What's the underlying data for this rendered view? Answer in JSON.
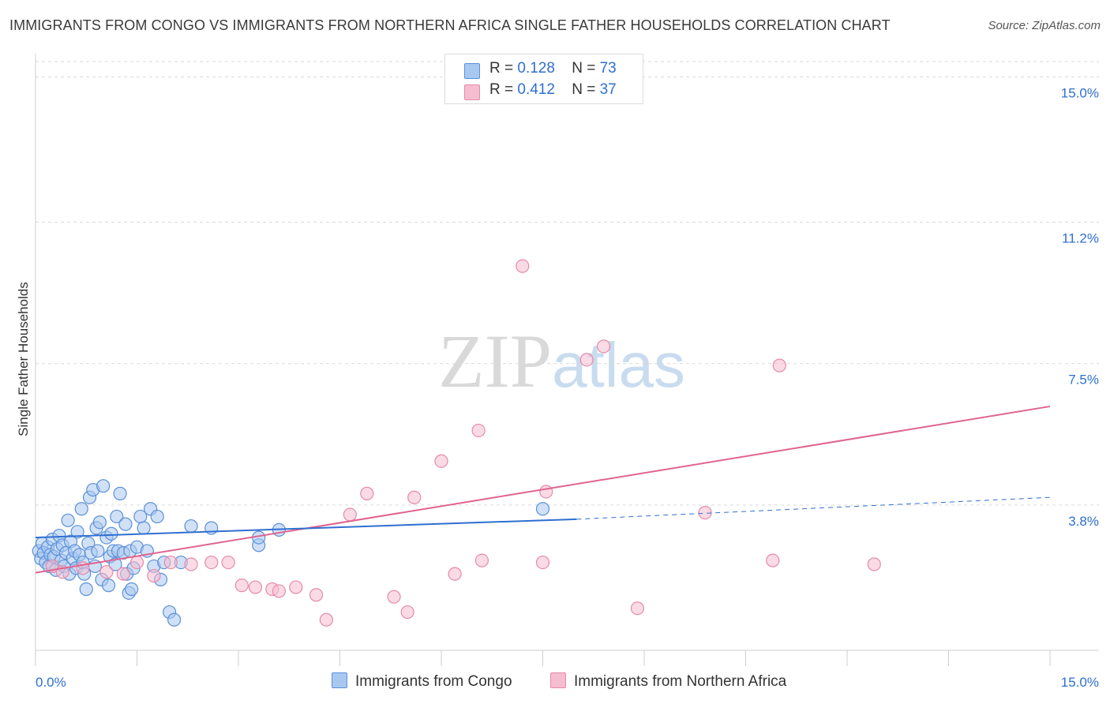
{
  "title": "IMMIGRANTS FROM CONGO VS IMMIGRANTS FROM NORTHERN AFRICA SINGLE FATHER HOUSEHOLDS CORRELATION CHART",
  "source": "Source: ZipAtlas.com",
  "watermark": {
    "zip": "ZIP",
    "atlas": "atlas"
  },
  "legend": {
    "rows": [
      {
        "r_label": "R =",
        "r_value": "0.128",
        "n_label": "N =",
        "n_value": "73"
      },
      {
        "r_label": "R =",
        "r_value": "0.412",
        "n_label": "N =",
        "n_value": "37"
      }
    ]
  },
  "colors": {
    "congo_fill": "#a9c8f0",
    "congo_stroke": "#5b90d8",
    "congo_line": "#2f6fd0",
    "nafrica_fill": "#f6bdd0",
    "nafrica_stroke": "#e58aaa",
    "nafrica_line": "#e0648f",
    "grid": "#d9d9d9",
    "axis_text": "#2f6fd0"
  },
  "chart_data": {
    "type": "scatter",
    "title": "IMMIGRANTS FROM CONGO VS IMMIGRANTS FROM NORTHERN AFRICA SINGLE FATHER HOUSEHOLDS CORRELATION CHART",
    "xlabel": "",
    "ylabel": "Single Father Households",
    "xlim": [
      0,
      15
    ],
    "ylim": [
      0,
      15.4
    ],
    "x_tick_labels": [
      "0.0%",
      "15.0%"
    ],
    "y_ticks": [
      3.8,
      7.5,
      11.2,
      15.0
    ],
    "y_tick_labels": [
      "3.8%",
      "7.5%",
      "11.2%",
      "15.0%"
    ],
    "series": [
      {
        "name": "Immigrants from Congo",
        "r": 0.128,
        "n": 73,
        "trend": {
          "x": [
            0,
            8.0
          ],
          "y": [
            2.95,
            3.43
          ]
        },
        "trend_dashed": {
          "x": [
            8.0,
            15.0
          ],
          "y": [
            3.43,
            4.0
          ]
        },
        "points": [
          [
            0.05,
            2.6
          ],
          [
            0.08,
            2.4
          ],
          [
            0.1,
            2.8
          ],
          [
            0.12,
            2.55
          ],
          [
            0.15,
            2.3
          ],
          [
            0.18,
            2.7
          ],
          [
            0.2,
            2.2
          ],
          [
            0.22,
            2.5
          ],
          [
            0.25,
            2.9
          ],
          [
            0.27,
            2.45
          ],
          [
            0.3,
            2.1
          ],
          [
            0.32,
            2.65
          ],
          [
            0.35,
            3.0
          ],
          [
            0.38,
            2.35
          ],
          [
            0.4,
            2.75
          ],
          [
            0.42,
            2.2
          ],
          [
            0.45,
            2.55
          ],
          [
            0.48,
            3.4
          ],
          [
            0.5,
            2.0
          ],
          [
            0.52,
            2.85
          ],
          [
            0.55,
            2.4
          ],
          [
            0.58,
            2.6
          ],
          [
            0.6,
            2.15
          ],
          [
            0.62,
            3.1
          ],
          [
            0.65,
            2.5
          ],
          [
            0.68,
            3.7
          ],
          [
            0.7,
            2.3
          ],
          [
            0.72,
            2.0
          ],
          [
            0.75,
            1.6
          ],
          [
            0.78,
            2.8
          ],
          [
            0.8,
            4.0
          ],
          [
            0.82,
            2.55
          ],
          [
            0.85,
            4.2
          ],
          [
            0.88,
            2.2
          ],
          [
            0.9,
            3.2
          ],
          [
            0.92,
            2.6
          ],
          [
            0.95,
            3.35
          ],
          [
            0.98,
            1.85
          ],
          [
            1.0,
            4.3
          ],
          [
            1.05,
            2.95
          ],
          [
            1.08,
            1.7
          ],
          [
            1.1,
            2.45
          ],
          [
            1.12,
            3.05
          ],
          [
            1.15,
            2.6
          ],
          [
            1.18,
            2.25
          ],
          [
            1.2,
            3.5
          ],
          [
            1.22,
            2.6
          ],
          [
            1.25,
            4.1
          ],
          [
            1.3,
            2.55
          ],
          [
            1.33,
            3.3
          ],
          [
            1.35,
            2.0
          ],
          [
            1.38,
            1.5
          ],
          [
            1.4,
            2.6
          ],
          [
            1.42,
            1.6
          ],
          [
            1.45,
            2.15
          ],
          [
            1.5,
            2.7
          ],
          [
            1.55,
            3.5
          ],
          [
            1.6,
            3.2
          ],
          [
            1.65,
            2.6
          ],
          [
            1.7,
            3.7
          ],
          [
            1.75,
            2.2
          ],
          [
            1.8,
            3.5
          ],
          [
            1.85,
            1.85
          ],
          [
            1.9,
            2.3
          ],
          [
            1.98,
            1.0
          ],
          [
            2.05,
            0.8
          ],
          [
            2.15,
            2.3
          ],
          [
            2.3,
            3.25
          ],
          [
            2.6,
            3.2
          ],
          [
            3.3,
            2.75
          ],
          [
            3.3,
            2.95
          ],
          [
            3.6,
            3.15
          ],
          [
            7.5,
            3.7
          ]
        ]
      },
      {
        "name": "Immigrants from Northern Africa",
        "r": 0.412,
        "n": 37,
        "trend": {
          "x": [
            0,
            15.0
          ],
          "y": [
            2.03,
            6.38
          ]
        },
        "points": [
          [
            0.25,
            2.2
          ],
          [
            0.4,
            2.05
          ],
          [
            0.7,
            2.15
          ],
          [
            1.05,
            2.05
          ],
          [
            1.3,
            2.0
          ],
          [
            1.5,
            2.3
          ],
          [
            1.75,
            1.95
          ],
          [
            2.0,
            2.3
          ],
          [
            2.3,
            2.25
          ],
          [
            2.6,
            2.3
          ],
          [
            2.85,
            2.3
          ],
          [
            3.05,
            1.7
          ],
          [
            3.25,
            1.65
          ],
          [
            3.5,
            1.6
          ],
          [
            3.6,
            1.55
          ],
          [
            3.85,
            1.65
          ],
          [
            4.15,
            1.45
          ],
          [
            4.3,
            0.8
          ],
          [
            4.65,
            3.55
          ],
          [
            4.9,
            4.1
          ],
          [
            5.3,
            1.4
          ],
          [
            5.5,
            1.0
          ],
          [
            5.6,
            4.0
          ],
          [
            6.0,
            4.95
          ],
          [
            6.2,
            2.0
          ],
          [
            6.55,
            5.75
          ],
          [
            6.6,
            2.35
          ],
          [
            7.2,
            10.05
          ],
          [
            7.5,
            2.3
          ],
          [
            7.55,
            4.15
          ],
          [
            8.15,
            7.6
          ],
          [
            8.4,
            7.95
          ],
          [
            8.9,
            1.1
          ],
          [
            9.9,
            3.6
          ],
          [
            10.9,
            2.35
          ],
          [
            11.0,
            7.45
          ],
          [
            12.4,
            2.25
          ]
        ]
      }
    ]
  }
}
